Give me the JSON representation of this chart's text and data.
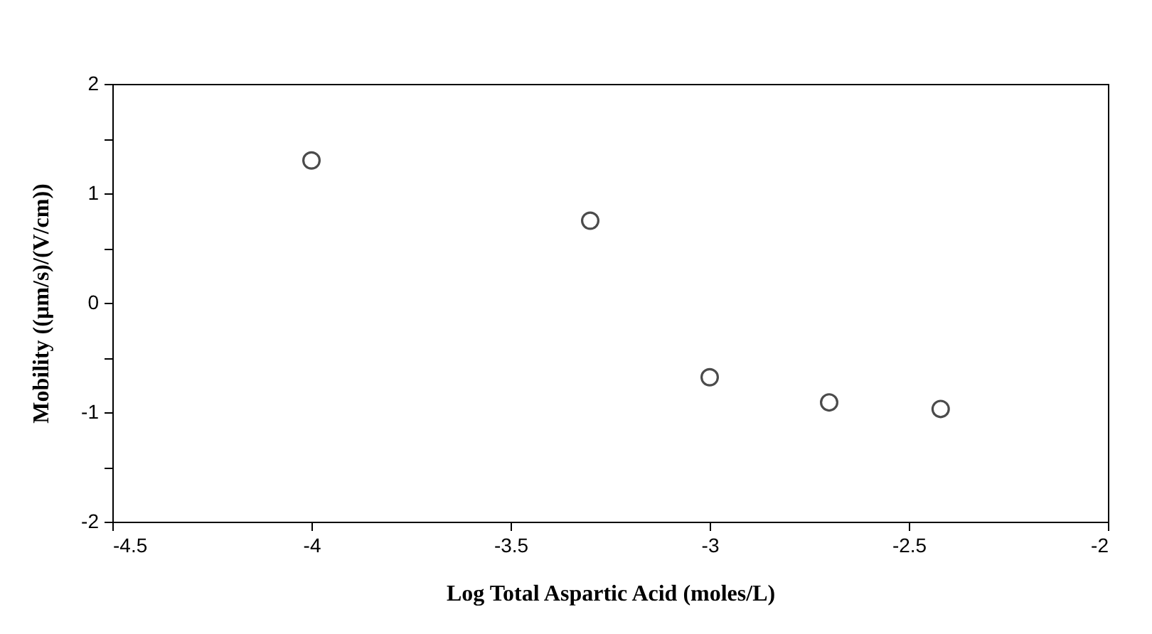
{
  "chart_data": {
    "type": "scatter",
    "xlabel": "Log Total Aspartic Acid (moles/L)",
    "ylabel": "Mobility ((µm/s)/(V/cm))",
    "x": [
      -4,
      -3.3,
      -3,
      -2.7,
      -2.42
    ],
    "series": [
      {
        "color": "#000000",
        "values": [
          1.3,
          0.75,
          -0.68,
          -0.91,
          -0.97
        ]
      }
    ],
    "xlim": [
      -4.5,
      -2
    ],
    "xticks": [
      -4.5,
      -4,
      -3.5,
      -3,
      -2.5,
      -2
    ],
    "ylim": [
      -2,
      2
    ],
    "yticks": [
      -2,
      {
        "value": -1.5,
        "label": null
      },
      -1,
      {
        "value": -0.5,
        "label": null
      },
      0,
      {
        "value": 0.5,
        "label": null
      },
      1,
      {
        "value": 1.5,
        "label": null
      },
      2
    ],
    "marker": "circle",
    "grid": false
  }
}
